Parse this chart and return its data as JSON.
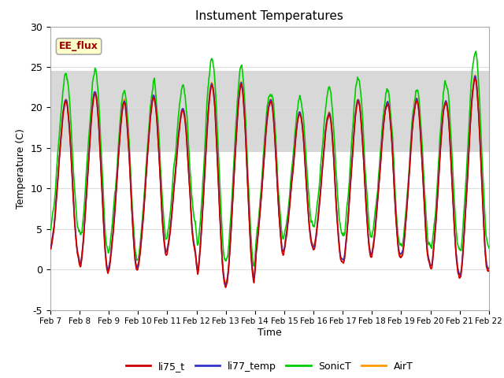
{
  "title": "Instument Temperatures",
  "xlabel": "Time",
  "ylabel": "Temperature (C)",
  "ylim": [
    -5,
    30
  ],
  "xlim": [
    0,
    15
  ],
  "annotation_text": "EE_flux",
  "annotation_bg": "#ffffcc",
  "annotation_border": "#aaaaaa",
  "annotation_text_color": "#990000",
  "background_color": "#ffffff",
  "plot_bg_color": "#ffffff",
  "grid_color": "#dddddd",
  "legend_items": [
    "li75_t",
    "li77_temp",
    "SonicT",
    "AirT"
  ],
  "legend_colors": [
    "#cc0000",
    "#3333cc",
    "#00cc00",
    "#ff9900"
  ],
  "x_tick_labels": [
    "Feb 7",
    "Feb 8",
    "Feb 9",
    "Feb 10",
    "Feb 11",
    "Feb 12",
    "Feb 13",
    "Feb 14",
    "Feb 15",
    "Feb 16",
    "Feb 17",
    "Feb 18",
    "Feb 19",
    "Feb 20",
    "Feb 21",
    "Feb 22"
  ],
  "x_tick_positions": [
    0,
    1,
    2,
    3,
    4,
    5,
    6,
    7,
    8,
    9,
    10,
    11,
    12,
    13,
    14,
    15
  ],
  "yticks": [
    -5,
    0,
    5,
    10,
    15,
    20,
    25,
    30
  ],
  "shade_ymin": 14.5,
  "shade_ymax": 24.5,
  "num_points": 1500
}
